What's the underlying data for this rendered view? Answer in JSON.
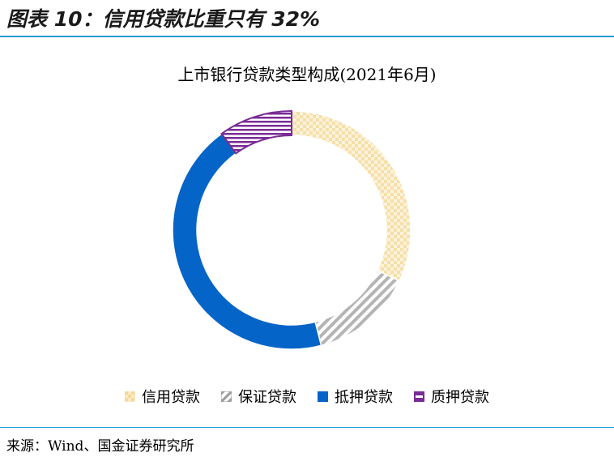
{
  "figure": {
    "title": "图表 10：信用贷款比重只有 32%",
    "source": "来源：Wind、国金证券研究所"
  },
  "chart_data": {
    "type": "pie",
    "variant": "donut",
    "title": "上市银行贷款类型构成(2021年6月)",
    "legend_position": "bottom",
    "categories": [
      "信用贷款",
      "保证贷款",
      "抵押贷款",
      "质押贷款"
    ],
    "values": [
      32,
      14,
      44,
      10
    ],
    "unit": "%",
    "colors": {
      "信用贷款": "#fbe9c0",
      "保证贷款": "#bdbdbd",
      "抵押贷款": "#0564c7",
      "质押贷款": "#7a2c95"
    },
    "patterns": {
      "信用贷款": "checker",
      "保证贷款": "diagonal-stripes",
      "抵押贷款": "solid",
      "质押贷款": "horizontal-stripes"
    }
  }
}
